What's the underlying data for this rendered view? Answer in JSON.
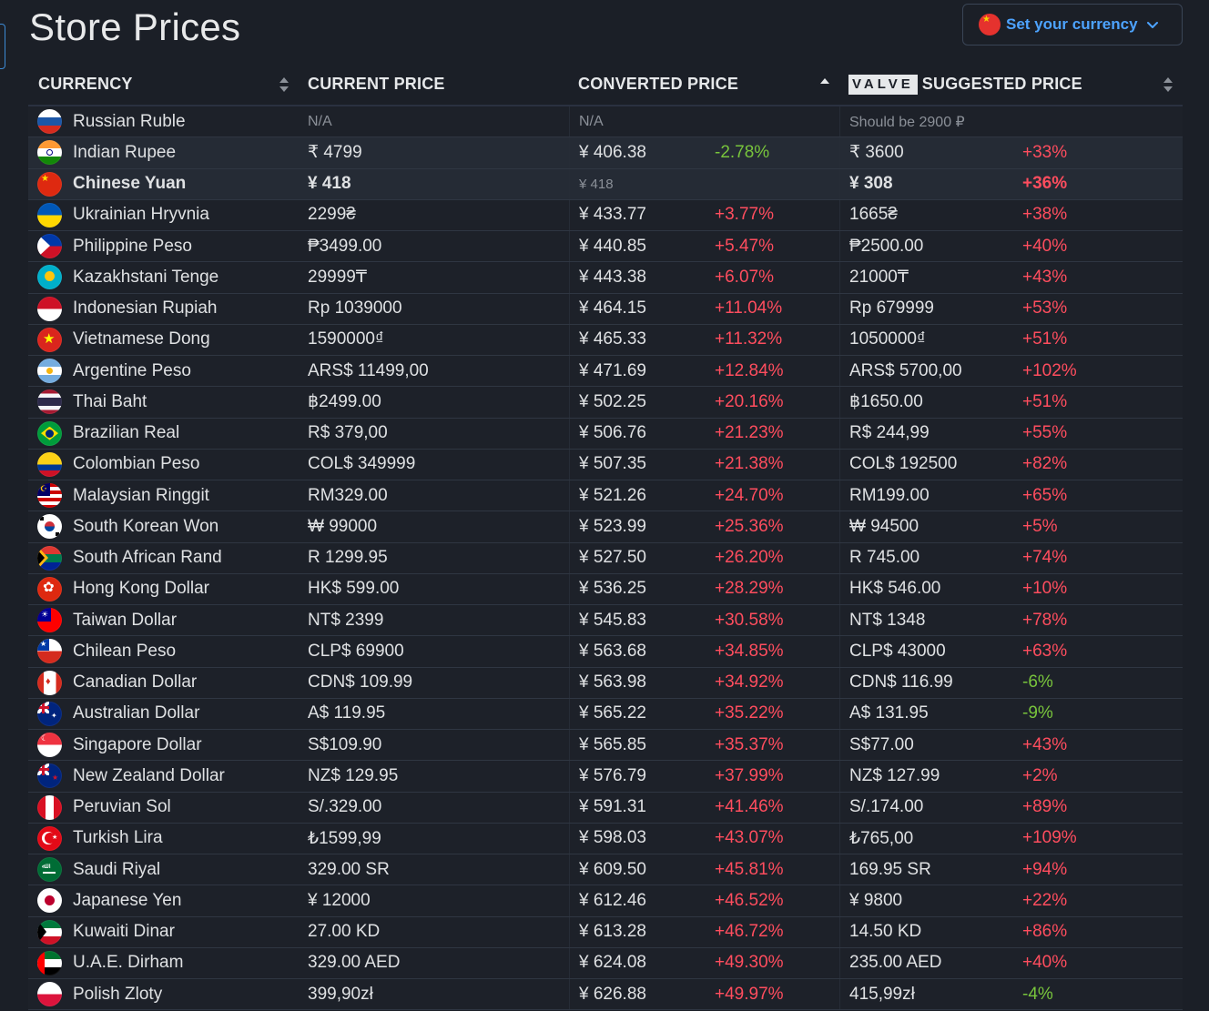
{
  "title": "Store Prices",
  "currency_button": {
    "label": "Set your currency",
    "flag": "chinese-flag"
  },
  "headers": {
    "currency": "CURRENCY",
    "current": "CURRENT PRICE",
    "converted": "CONVERTED PRICE",
    "valve_logo": "VALVE",
    "suggested": "SUGGESTED PRICE"
  },
  "colors": {
    "positive_pct": "#ff4d5e",
    "negative_pct": "#78c43c",
    "accent": "#4da3ff"
  },
  "rows": [
    {
      "name": "Russian Ruble",
      "flag": "ru",
      "current": "N/A",
      "converted": "N/A",
      "conv_pct": "",
      "suggested": "Should be 2900 ₽",
      "sugg_pct": "",
      "muted": true
    },
    {
      "name": "Indian Rupee",
      "flag": "in",
      "current": "₹ 4799",
      "converted": "¥ 406.38",
      "conv_pct": "-2.78%",
      "suggested": "₹ 3600",
      "sugg_pct": "+33%",
      "highlight": true
    },
    {
      "name": "Chinese Yuan",
      "flag": "cn",
      "current": "¥ 418",
      "converted": "¥ 418",
      "conv_pct": "",
      "suggested": "¥ 308",
      "sugg_pct": "+36%",
      "highlight": true,
      "bold": true
    },
    {
      "name": "Ukrainian Hryvnia",
      "flag": "ua",
      "current": "2299₴",
      "converted": "¥ 433.77",
      "conv_pct": "+3.77%",
      "suggested": "1665₴",
      "sugg_pct": "+38%"
    },
    {
      "name": "Philippine Peso",
      "flag": "ph",
      "current": "₱3499.00",
      "converted": "¥ 440.85",
      "conv_pct": "+5.47%",
      "suggested": "₱2500.00",
      "sugg_pct": "+40%"
    },
    {
      "name": "Kazakhstani Tenge",
      "flag": "kz",
      "current": "29999₸",
      "converted": "¥ 443.38",
      "conv_pct": "+6.07%",
      "suggested": "21000₸",
      "sugg_pct": "+43%"
    },
    {
      "name": "Indonesian Rupiah",
      "flag": "id",
      "current": "Rp 1039000",
      "converted": "¥ 464.15",
      "conv_pct": "+11.04%",
      "suggested": "Rp 679999",
      "sugg_pct": "+53%"
    },
    {
      "name": "Vietnamese Dong",
      "flag": "vn",
      "current": "1590000₫",
      "converted": "¥ 465.33",
      "conv_pct": "+11.32%",
      "suggested": "1050000₫",
      "sugg_pct": "+51%"
    },
    {
      "name": "Argentine Peso",
      "flag": "ar",
      "current": "ARS$ 11499,00",
      "converted": "¥ 471.69",
      "conv_pct": "+12.84%",
      "suggested": "ARS$ 5700,00",
      "sugg_pct": "+102%"
    },
    {
      "name": "Thai Baht",
      "flag": "th",
      "current": "฿2499.00",
      "converted": "¥ 502.25",
      "conv_pct": "+20.16%",
      "suggested": "฿1650.00",
      "sugg_pct": "+51%"
    },
    {
      "name": "Brazilian Real",
      "flag": "br",
      "current": "R$ 379,00",
      "converted": "¥ 506.76",
      "conv_pct": "+21.23%",
      "suggested": "R$ 244,99",
      "sugg_pct": "+55%"
    },
    {
      "name": "Colombian Peso",
      "flag": "co",
      "current": "COL$ 349999",
      "converted": "¥ 507.35",
      "conv_pct": "+21.38%",
      "suggested": "COL$ 192500",
      "sugg_pct": "+82%"
    },
    {
      "name": "Malaysian Ringgit",
      "flag": "my",
      "current": "RM329.00",
      "converted": "¥ 521.26",
      "conv_pct": "+24.70%",
      "suggested": "RM199.00",
      "sugg_pct": "+65%"
    },
    {
      "name": "South Korean Won",
      "flag": "kr",
      "current": "₩ 99000",
      "converted": "¥ 523.99",
      "conv_pct": "+25.36%",
      "suggested": "₩ 94500",
      "sugg_pct": "+5%"
    },
    {
      "name": "South African Rand",
      "flag": "za",
      "current": "R 1299.95",
      "converted": "¥ 527.50",
      "conv_pct": "+26.20%",
      "suggested": "R 745.00",
      "sugg_pct": "+74%"
    },
    {
      "name": "Hong Kong Dollar",
      "flag": "hk",
      "current": "HK$ 599.00",
      "converted": "¥ 536.25",
      "conv_pct": "+28.29%",
      "suggested": "HK$ 546.00",
      "sugg_pct": "+10%"
    },
    {
      "name": "Taiwan Dollar",
      "flag": "tw",
      "current": "NT$ 2399",
      "converted": "¥ 545.83",
      "conv_pct": "+30.58%",
      "suggested": "NT$ 1348",
      "sugg_pct": "+78%"
    },
    {
      "name": "Chilean Peso",
      "flag": "cl",
      "current": "CLP$ 69900",
      "converted": "¥ 563.68",
      "conv_pct": "+34.85%",
      "suggested": "CLP$ 43000",
      "sugg_pct": "+63%"
    },
    {
      "name": "Canadian Dollar",
      "flag": "ca",
      "current": "CDN$ 109.99",
      "converted": "¥ 563.98",
      "conv_pct": "+34.92%",
      "suggested": "CDN$ 116.99",
      "sugg_pct": "-6%"
    },
    {
      "name": "Australian Dollar",
      "flag": "au",
      "current": "A$ 119.95",
      "converted": "¥ 565.22",
      "conv_pct": "+35.22%",
      "suggested": "A$ 131.95",
      "sugg_pct": "-9%"
    },
    {
      "name": "Singapore Dollar",
      "flag": "sg",
      "current": "S$109.90",
      "converted": "¥ 565.85",
      "conv_pct": "+35.37%",
      "suggested": "S$77.00",
      "sugg_pct": "+43%"
    },
    {
      "name": "New Zealand Dollar",
      "flag": "nz",
      "current": "NZ$ 129.95",
      "converted": "¥ 576.79",
      "conv_pct": "+37.99%",
      "suggested": "NZ$ 127.99",
      "sugg_pct": "+2%"
    },
    {
      "name": "Peruvian Sol",
      "flag": "pe",
      "current": "S/.329.00",
      "converted": "¥ 591.31",
      "conv_pct": "+41.46%",
      "suggested": "S/.174.00",
      "sugg_pct": "+89%"
    },
    {
      "name": "Turkish Lira",
      "flag": "tr",
      "current": "₺1599,99",
      "converted": "¥ 598.03",
      "conv_pct": "+43.07%",
      "suggested": "₺765,00",
      "sugg_pct": "+109%"
    },
    {
      "name": "Saudi Riyal",
      "flag": "sa",
      "current": "329.00 SR",
      "converted": "¥ 609.50",
      "conv_pct": "+45.81%",
      "suggested": "169.95 SR",
      "sugg_pct": "+94%"
    },
    {
      "name": "Japanese Yen",
      "flag": "jp",
      "current": "¥ 12000",
      "converted": "¥ 612.46",
      "conv_pct": "+46.52%",
      "suggested": "¥ 9800",
      "sugg_pct": "+22%"
    },
    {
      "name": "Kuwaiti Dinar",
      "flag": "kw",
      "current": "27.00 KD",
      "converted": "¥ 613.28",
      "conv_pct": "+46.72%",
      "suggested": "14.50 KD",
      "sugg_pct": "+86%"
    },
    {
      "name": "U.A.E. Dirham",
      "flag": "ae",
      "current": "329.00 AED",
      "converted": "¥ 624.08",
      "conv_pct": "+49.30%",
      "suggested": "235.00 AED",
      "sugg_pct": "+40%"
    },
    {
      "name": "Polish Zloty",
      "flag": "pl",
      "current": "399,90zł",
      "converted": "¥ 626.88",
      "conv_pct": "+49.97%",
      "suggested": "415,99zł",
      "sugg_pct": "-4%"
    }
  ]
}
